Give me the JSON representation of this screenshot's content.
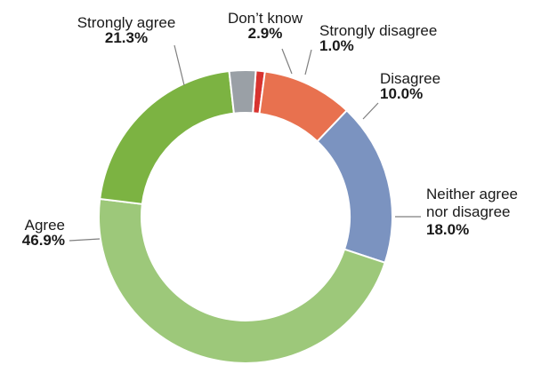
{
  "chart_data": {
    "type": "pie",
    "variant": "donut",
    "categories": [
      "Strongly disagree",
      "Disagree",
      "Neither agree nor disagree",
      "Agree",
      "Strongly agree",
      "Don’t know"
    ],
    "values": [
      1.0,
      10.0,
      18.0,
      46.9,
      21.3,
      2.9
    ],
    "value_labels": [
      "1.0%",
      "10.0%",
      "18.0%",
      "46.9%",
      "21.3%",
      "2.9%"
    ],
    "label_lines": [
      [
        "Strongly disagree"
      ],
      [
        "Disagree"
      ],
      [
        "Neither agree",
        "nor disagree"
      ],
      [
        "Agree"
      ],
      [
        "Strongly agree"
      ],
      [
        "Don’t know"
      ]
    ],
    "colors": [
      "#d8332f",
      "#e8714f",
      "#7b93c0",
      "#9dc87a",
      "#7cb342",
      "#9aa0a6"
    ],
    "title": "",
    "legend": "none"
  }
}
